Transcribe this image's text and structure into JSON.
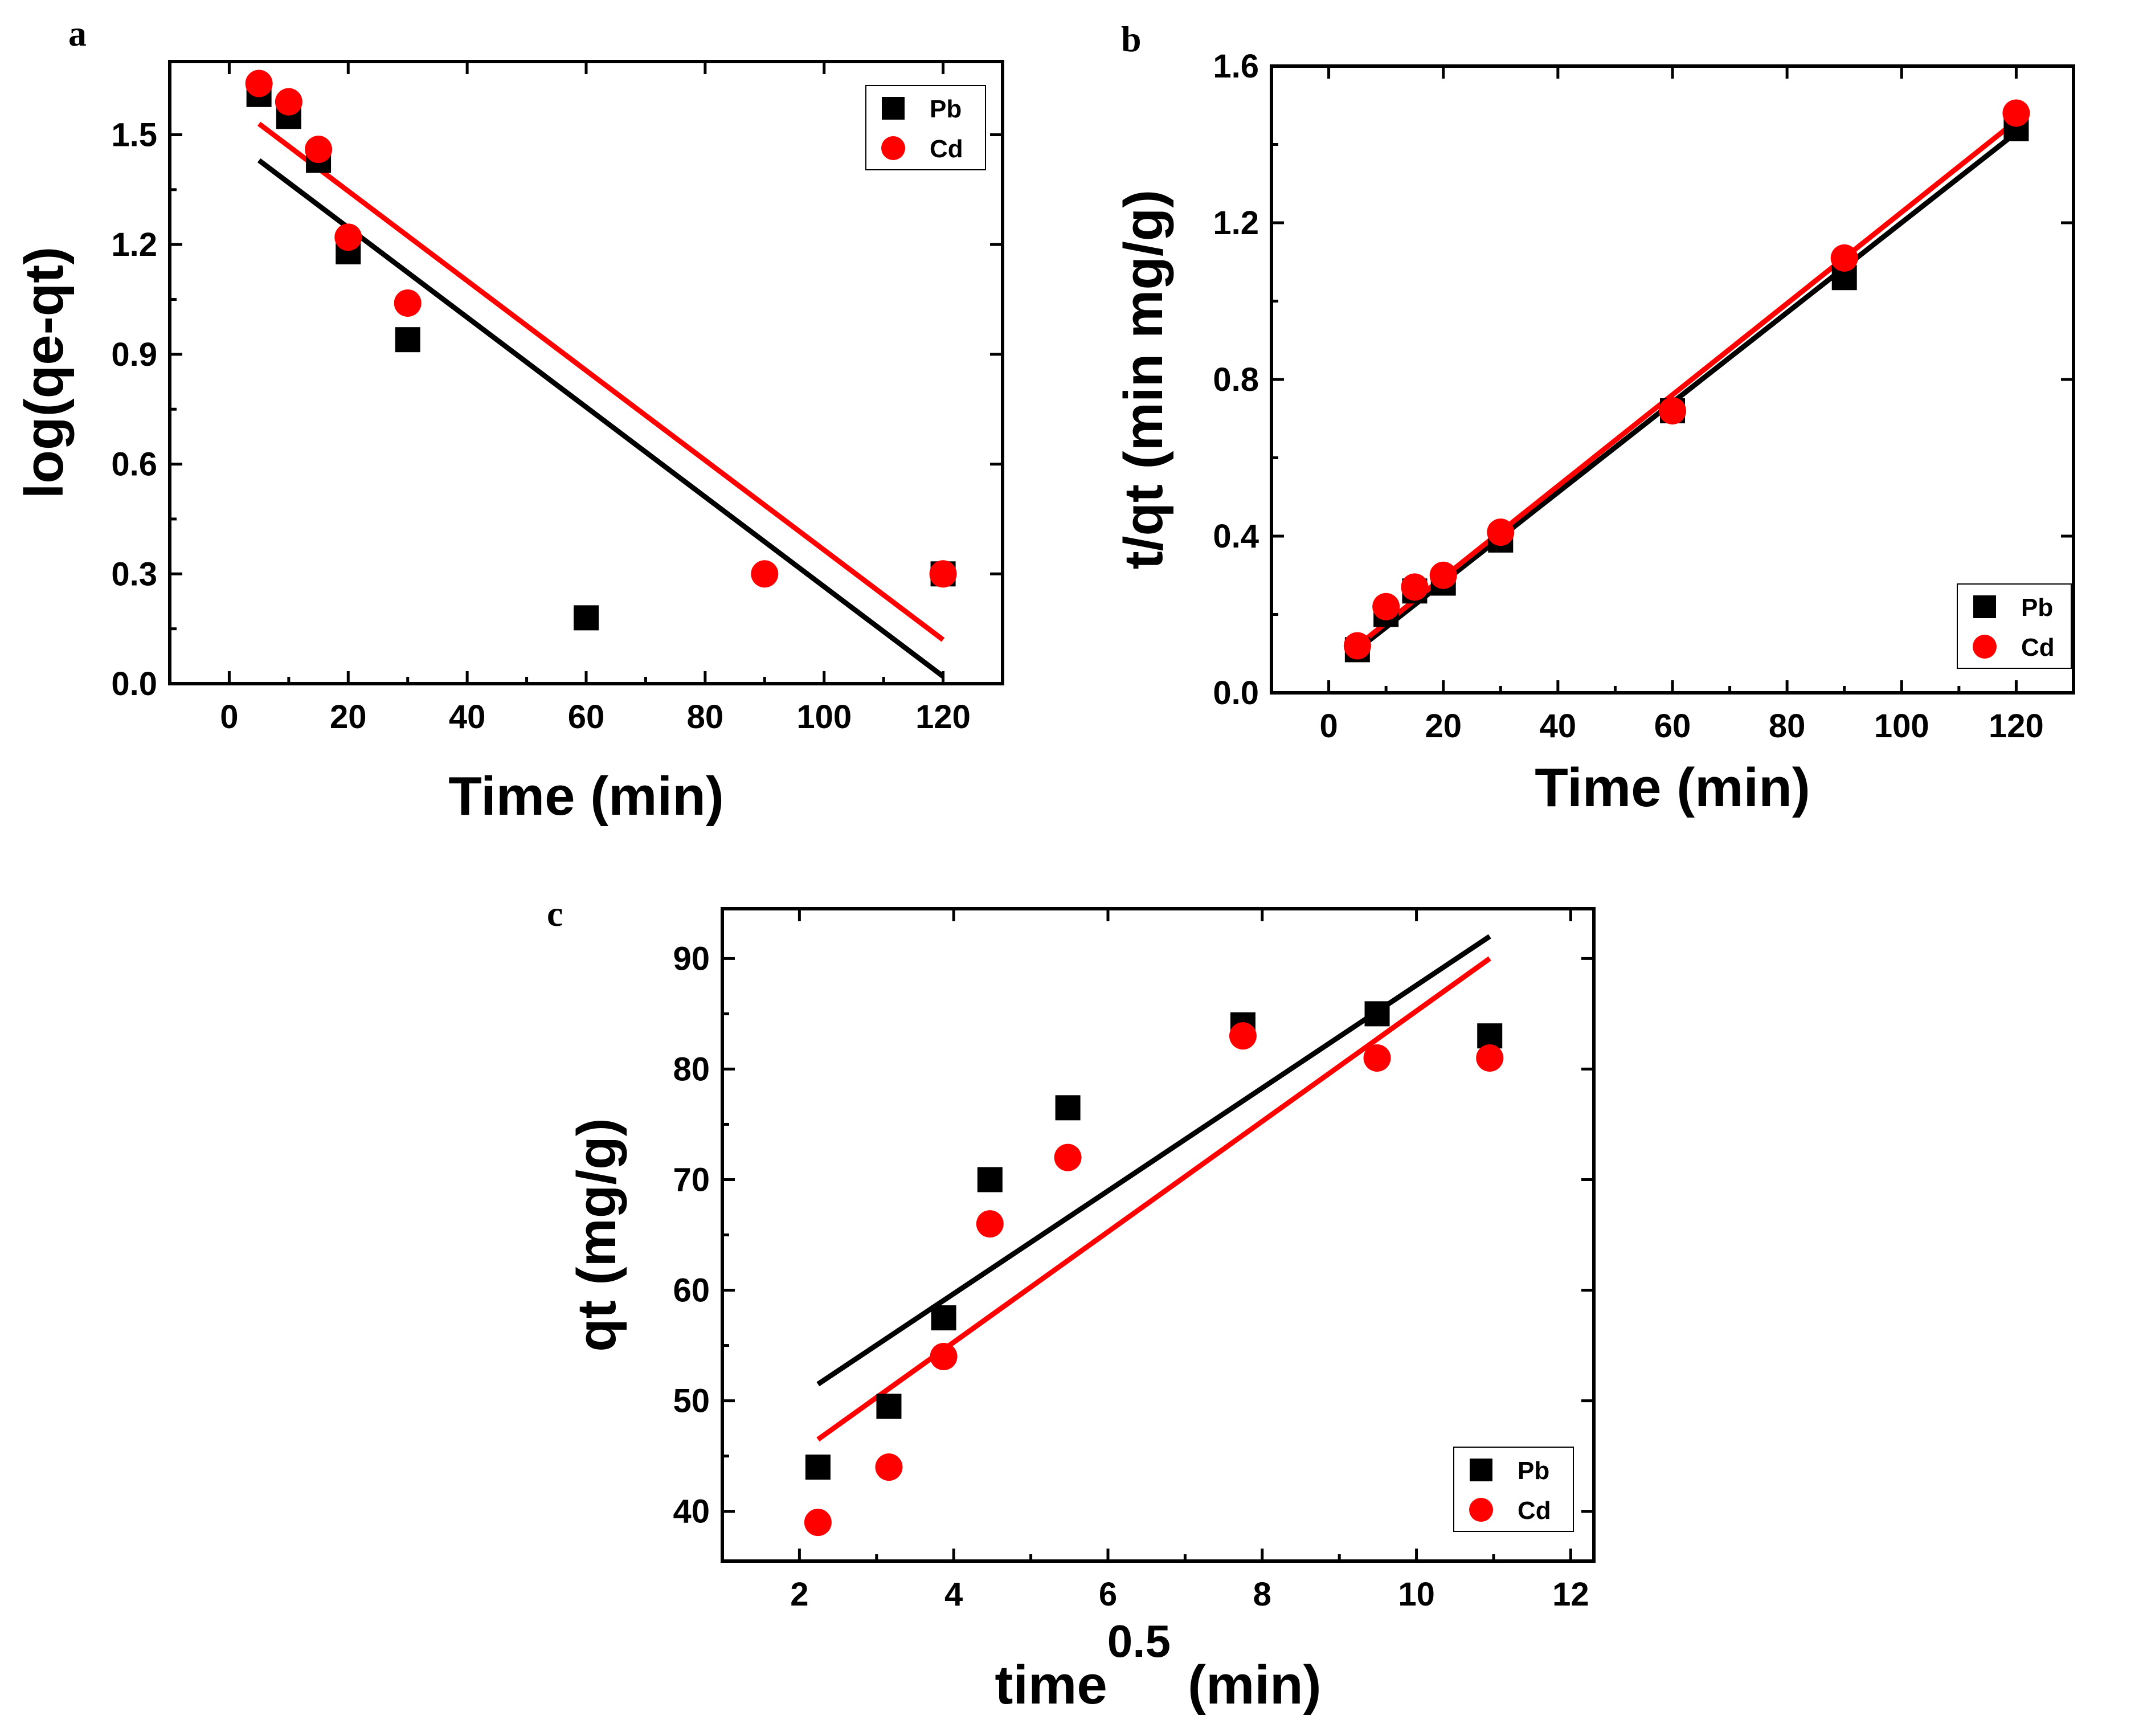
{
  "chart_data": [
    {
      "panel": "a",
      "type": "scatter",
      "xlabel": "Time (min)",
      "ylabel": "log(qe-qt)",
      "xlim": [
        -10,
        130
      ],
      "ylim": [
        0.0,
        1.7
      ],
      "xticks": [
        0,
        20,
        40,
        60,
        80,
        100,
        120
      ],
      "xtick_labels": [
        "0",
        "20",
        "40",
        "60",
        "80",
        "100",
        "120"
      ],
      "yticks": [
        0.0,
        0.3,
        0.6,
        0.9,
        1.2,
        1.5
      ],
      "ytick_labels": [
        "0.0",
        "0.3",
        "0.6",
        "0.9",
        "1.2",
        "1.5"
      ],
      "legend_position": "top-right",
      "series": [
        {
          "name": "Pb",
          "color": "#000000",
          "marker": "square",
          "x": [
            5,
            10,
            15,
            20,
            30,
            60,
            120
          ],
          "y": [
            1.61,
            1.55,
            1.43,
            1.18,
            0.94,
            0.18,
            0.3
          ],
          "fit": {
            "x": [
              5,
              120
            ],
            "y": [
              1.43,
              0.02
            ]
          }
        },
        {
          "name": "Cd",
          "color": "#ff0000",
          "marker": "circle",
          "x": [
            5,
            10,
            15,
            20,
            30,
            90,
            120
          ],
          "y": [
            1.64,
            1.59,
            1.46,
            1.22,
            1.04,
            0.3,
            0.3
          ],
          "fit": {
            "x": [
              5,
              120
            ],
            "y": [
              1.53,
              0.12
            ]
          }
        }
      ]
    },
    {
      "panel": "b",
      "type": "scatter",
      "xlabel": "Time (min)",
      "ylabel": "t/qt (min mg/g)",
      "xlim": [
        -10,
        130
      ],
      "ylim": [
        0.0,
        1.6
      ],
      "xticks": [
        0,
        20,
        40,
        60,
        80,
        100,
        120
      ],
      "xtick_labels": [
        "0",
        "20",
        "40",
        "60",
        "80",
        "100",
        "120"
      ],
      "yticks": [
        0.0,
        0.4,
        0.8,
        1.2,
        1.6
      ],
      "ytick_labels": [
        "0.0",
        "0.4",
        "0.8",
        "1.2",
        "1.6"
      ],
      "legend_position": "bottom-right",
      "series": [
        {
          "name": "Pb",
          "color": "#000000",
          "marker": "square",
          "x": [
            5,
            10,
            15,
            20,
            30,
            60,
            90,
            120
          ],
          "y": [
            0.11,
            0.2,
            0.26,
            0.28,
            0.39,
            0.72,
            1.06,
            1.44
          ],
          "fit": {
            "x": [
              5,
              120
            ],
            "y": [
              0.11,
              1.43
            ]
          }
        },
        {
          "name": "Cd",
          "color": "#ff0000",
          "marker": "circle",
          "x": [
            5,
            10,
            15,
            20,
            30,
            60,
            90,
            120
          ],
          "y": [
            0.12,
            0.22,
            0.27,
            0.3,
            0.41,
            0.72,
            1.11,
            1.48
          ],
          "fit": {
            "x": [
              5,
              120
            ],
            "y": [
              0.12,
              1.46
            ]
          }
        }
      ]
    },
    {
      "panel": "c",
      "type": "scatter",
      "xlabel_main": "time",
      "xlabel_sup": "0.5",
      "xlabel_unit": "(min)",
      "ylabel": "qt (mg/g)",
      "xlim": [
        1,
        12.3
      ],
      "ylim": [
        35.5,
        94.5
      ],
      "xticks": [
        2,
        4,
        6,
        8,
        10,
        12
      ],
      "xtick_labels": [
        "2",
        "4",
        "6",
        "8",
        "10",
        "12"
      ],
      "yticks": [
        40,
        50,
        60,
        70,
        80,
        90
      ],
      "ytick_labels": [
        "40",
        "50",
        "60",
        "70",
        "80",
        "90"
      ],
      "legend_position": "bottom-right",
      "series": [
        {
          "name": "Pb",
          "color": "#000000",
          "marker": "square",
          "x": [
            2.24,
            3.16,
            3.87,
            4.47,
            5.48,
            7.75,
            9.49,
            10.95
          ],
          "y": [
            44,
            49.5,
            57.5,
            70,
            76.5,
            84,
            85,
            83
          ],
          "fit": {
            "x": [
              2.24,
              10.95
            ],
            "y": [
              51.5,
              92
            ]
          }
        },
        {
          "name": "Cd",
          "color": "#ff0000",
          "marker": "circle",
          "x": [
            2.24,
            3.16,
            3.87,
            4.47,
            5.48,
            7.75,
            9.49,
            10.95
          ],
          "y": [
            39,
            44,
            54,
            66,
            72,
            83,
            81,
            81
          ],
          "fit": {
            "x": [
              2.24,
              10.95
            ],
            "y": [
              46.5,
              90
            ]
          }
        }
      ]
    }
  ]
}
